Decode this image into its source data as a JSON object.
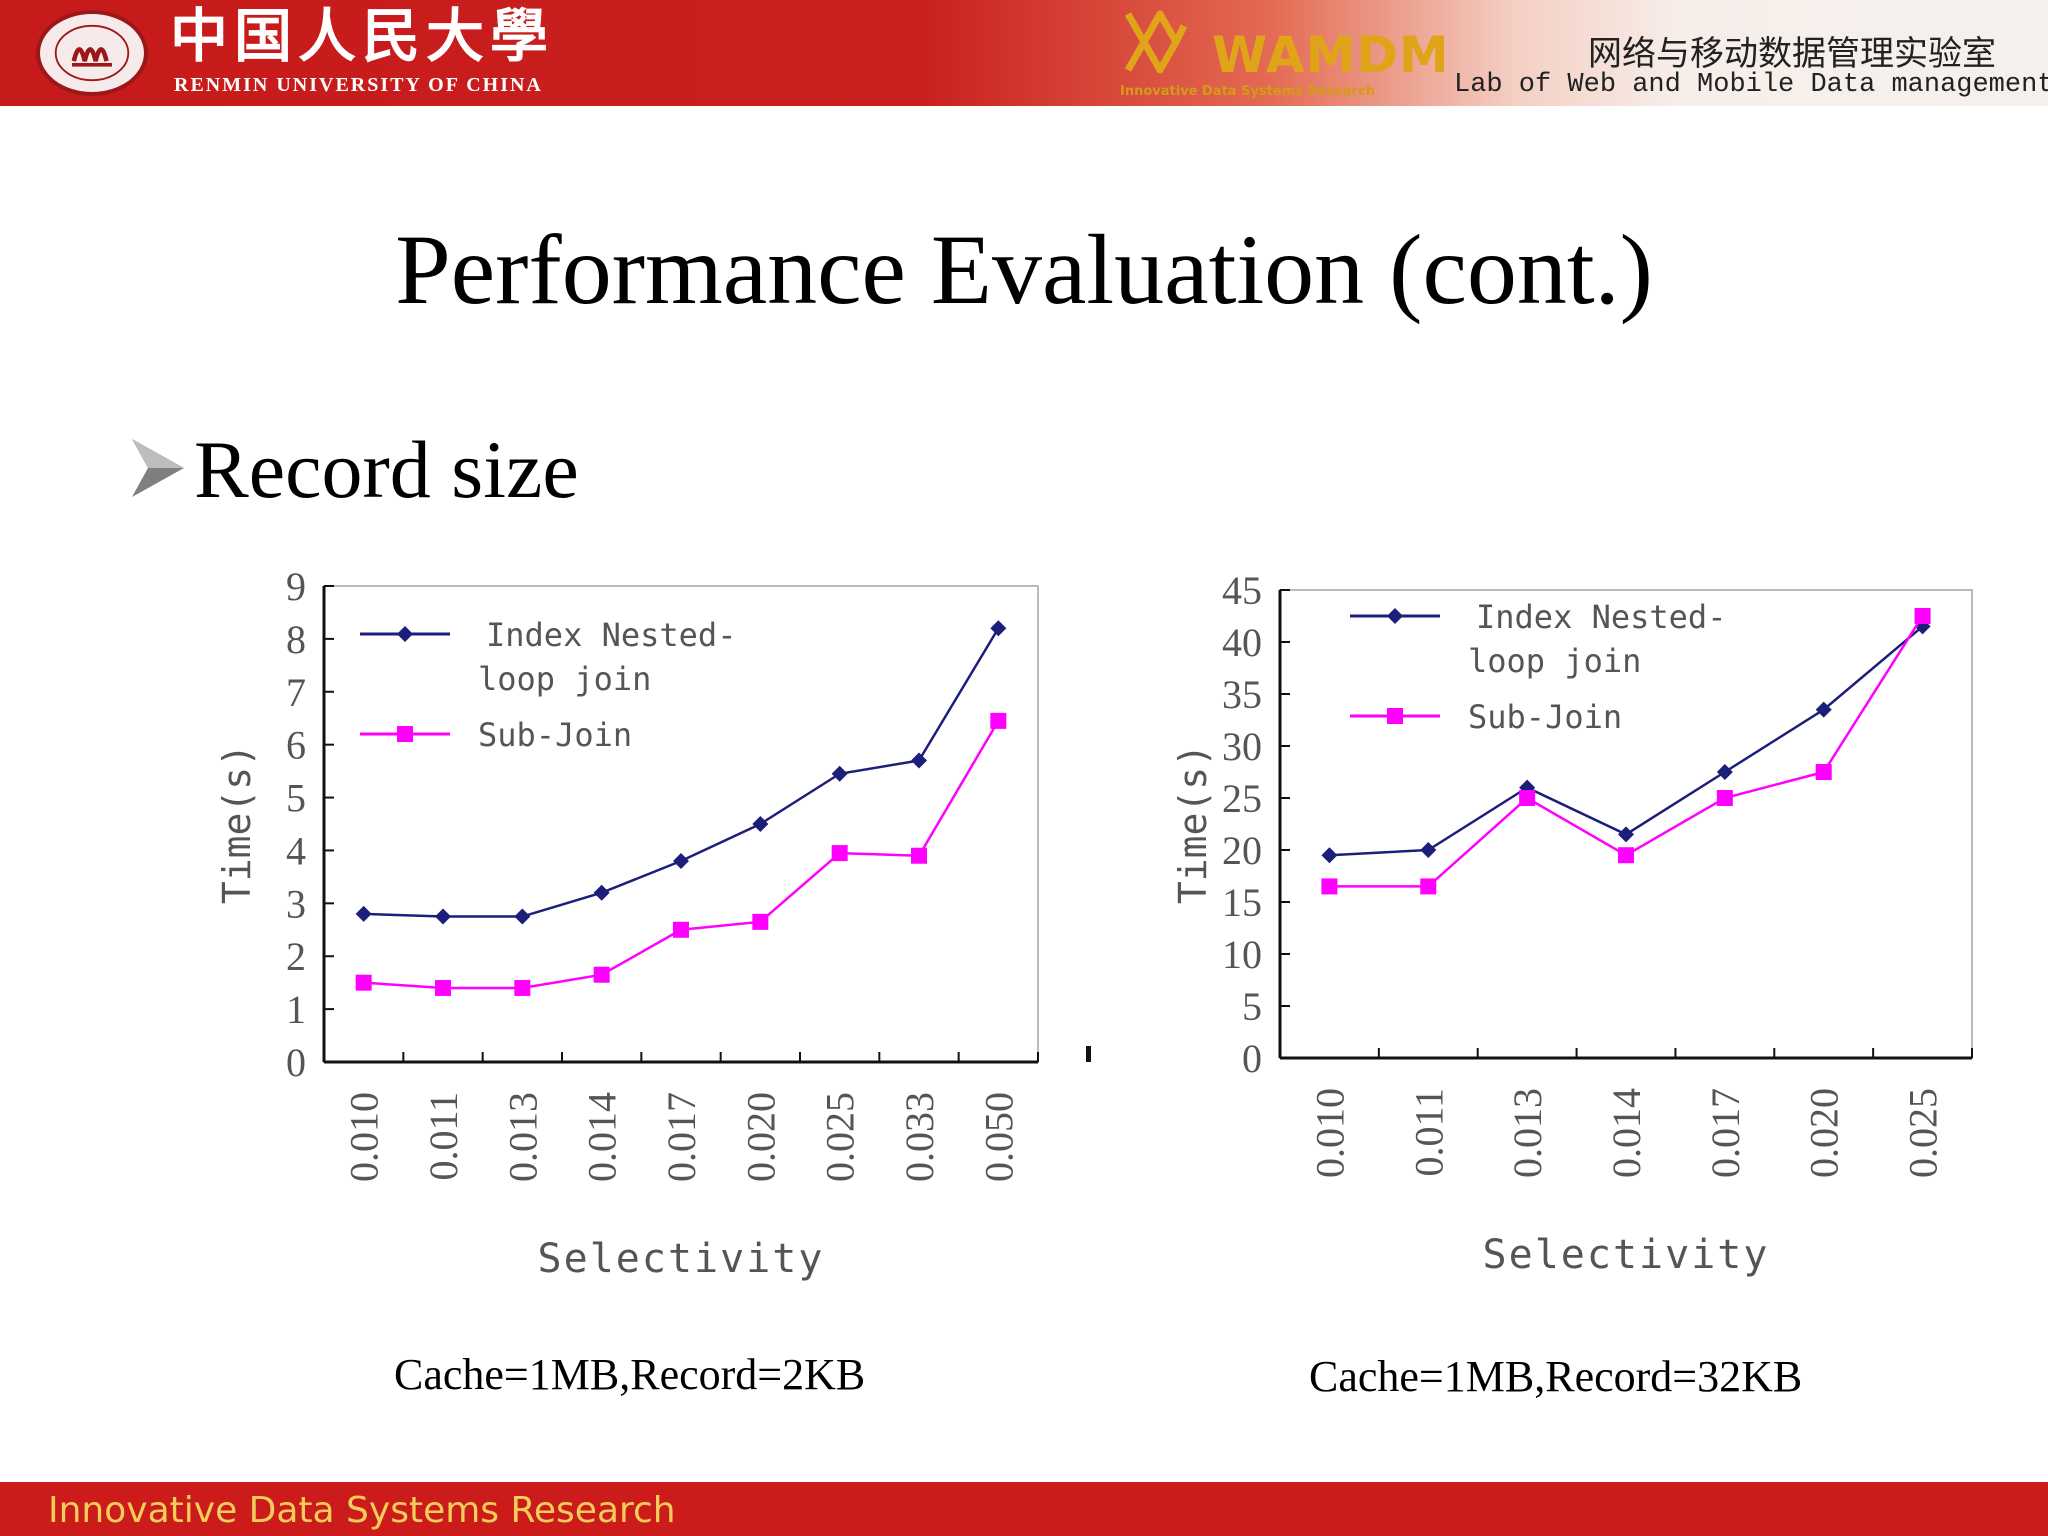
{
  "header": {
    "university_cn": "中国人民大學",
    "university_en": "RENMIN UNIVERSITY OF CHINA",
    "lab_logo": "WAMDM",
    "lab_logo_sub": "Innovative Data Systems Research",
    "lab_cn": "网络与移动数据管理实验室",
    "lab_en": "Lab of Web and Mobile Data management",
    "seal_icon": "university-seal-icon",
    "logo_icon": "wamdm-logo-icon",
    "colors": {
      "banner_red": "#c71a1a",
      "logo_gold": "#e0a418"
    }
  },
  "slide": {
    "title": "Performance Evaluation (cont.)",
    "bullet": "Record size",
    "bullet_icon": "arrow-bullet-icon"
  },
  "footer": {
    "text": "Innovative Data Systems Research"
  },
  "chart_data": [
    {
      "type": "line",
      "caption": "Cache=1MB,Record=2KB",
      "xlabel": "Selectivity",
      "ylabel": "Time(s)",
      "categories": [
        "0.010",
        "0.011",
        "0.013",
        "0.014",
        "0.017",
        "0.020",
        "0.025",
        "0.033",
        "0.050"
      ],
      "ylim": [
        0,
        9
      ],
      "yticks": [
        0,
        1,
        2,
        3,
        4,
        5,
        6,
        7,
        8,
        9
      ],
      "legend_position": "top-left",
      "grid": false,
      "series": [
        {
          "name": "Index Nested-loop join",
          "legend_lines": [
            "Index Nested-",
            "loop join"
          ],
          "color": "#1c1f7a",
          "marker": "diamond",
          "values": [
            2.8,
            2.75,
            2.75,
            3.2,
            3.8,
            4.5,
            5.45,
            5.7,
            8.2
          ]
        },
        {
          "name": "Sub-Join",
          "legend_lines": [
            "Sub-Join"
          ],
          "color": "#ff00ff",
          "marker": "square",
          "values": [
            1.5,
            1.4,
            1.4,
            1.65,
            2.5,
            2.65,
            3.95,
            3.9,
            6.45
          ]
        }
      ]
    },
    {
      "type": "line",
      "caption": "Cache=1MB,Record=32KB",
      "xlabel": "Selectivity",
      "ylabel": "Time(s)",
      "categories": [
        "0.010",
        "0.011",
        "0.013",
        "0.014",
        "0.017",
        "0.020",
        "0.025"
      ],
      "ylim": [
        0,
        45
      ],
      "yticks": [
        0,
        5,
        10,
        15,
        20,
        25,
        30,
        35,
        40,
        45
      ],
      "legend_position": "top-left",
      "grid": false,
      "series": [
        {
          "name": "Index Nested-loop join",
          "legend_lines": [
            "Index Nested-",
            "loop join"
          ],
          "color": "#1c1f7a",
          "marker": "diamond",
          "values": [
            19.5,
            20,
            26,
            21.5,
            27.5,
            33.5,
            41.5
          ]
        },
        {
          "name": "Sub-Join",
          "legend_lines": [
            "Sub-Join"
          ],
          "color": "#ff00ff",
          "marker": "square",
          "values": [
            16.5,
            16.5,
            25,
            19.5,
            25,
            27.5,
            42.5
          ]
        }
      ]
    }
  ]
}
